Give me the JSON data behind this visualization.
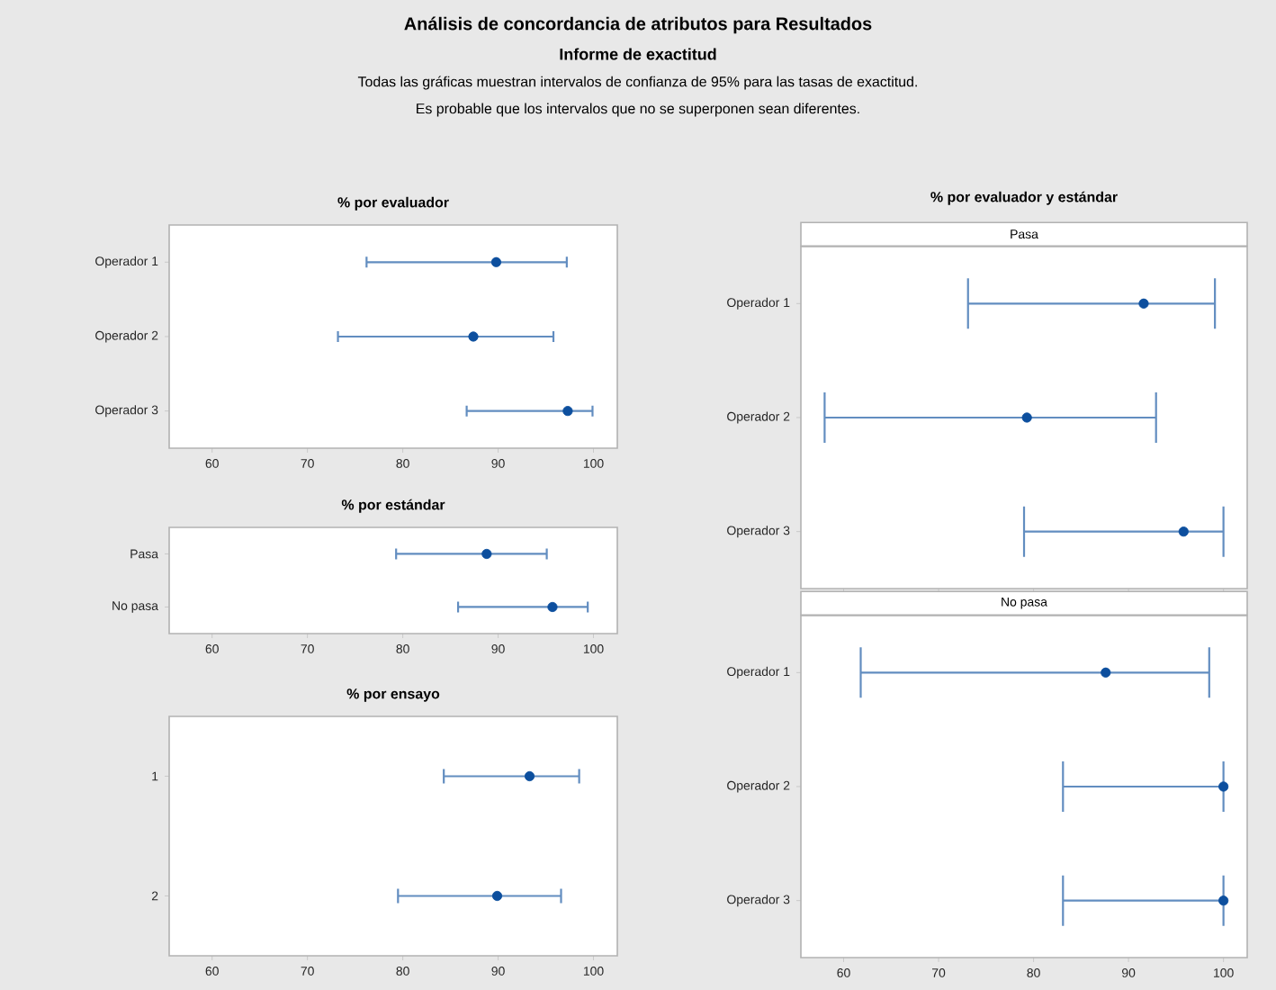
{
  "chart_data": [
    {
      "type": "other",
      "title": "Análisis de concordancia de atributos para Resultados",
      "subtitle": "Informe de exactitud",
      "annotations": [
        "Todas las gráficas muestran intervalos de confianza de 95% para las tasas de exactitud.",
        "Es probable que los intervalos que no se superponen sean diferentes."
      ]
    },
    {
      "type": "scatter",
      "orientation": "horizontal",
      "title": "% por evaluador",
      "categories": [
        "Operador 1",
        "Operador 2",
        "Operador 3"
      ],
      "values": [
        89.8,
        87.4,
        97.3
      ],
      "errors": [
        [
          76.2,
          97.2
        ],
        [
          73.2,
          95.8
        ],
        [
          86.7,
          99.9
        ]
      ],
      "color": "#0d4f9e",
      "marker": "circle",
      "xlim": [
        55.5,
        102.5
      ],
      "xticks": [
        60,
        70,
        80,
        90,
        100
      ]
    },
    {
      "type": "scatter",
      "orientation": "horizontal",
      "title": "% por estándar",
      "categories": [
        "Pasa",
        "No pasa"
      ],
      "values": [
        88.8,
        95.7
      ],
      "errors": [
        [
          79.3,
          95.1
        ],
        [
          85.8,
          99.4
        ]
      ],
      "color": "#0d4f9e",
      "marker": "circle",
      "xlim": [
        55.5,
        102.5
      ],
      "xticks": [
        60,
        70,
        80,
        90,
        100
      ]
    },
    {
      "type": "scatter",
      "orientation": "horizontal",
      "title": "% por ensayo",
      "categories": [
        "1",
        "2"
      ],
      "values": [
        93.3,
        89.9
      ],
      "errors": [
        [
          84.3,
          98.5
        ],
        [
          79.5,
          96.6
        ]
      ],
      "color": "#0d4f9e",
      "marker": "circle",
      "xlim": [
        55.5,
        102.5
      ],
      "xticks": [
        60,
        70,
        80,
        90,
        100
      ]
    },
    {
      "type": "scatter",
      "orientation": "horizontal",
      "title": "% por evaluador y estándar",
      "subtitle": "Pasa",
      "categories": [
        "Operador 1",
        "Operador 2",
        "Operador 3"
      ],
      "values": [
        91.6,
        79.3,
        95.8
      ],
      "errors": [
        [
          73.1,
          99.1
        ],
        [
          58.0,
          92.9
        ],
        [
          79.0,
          100
        ]
      ],
      "color": "#0d4f9e",
      "marker": "circle",
      "xlim": [
        55.5,
        102.5
      ],
      "xticks": [
        60,
        70,
        80,
        90,
        100
      ],
      "tick_labels": "y"
    },
    {
      "type": "scatter",
      "orientation": "horizontal",
      "subtitle": "No pasa",
      "categories": [
        "Operador 1",
        "Operador 2",
        "Operador 3"
      ],
      "values": [
        87.6,
        100,
        100
      ],
      "errors": [
        [
          61.8,
          98.5
        ],
        [
          83.1,
          100
        ],
        [
          83.1,
          100
        ]
      ],
      "color": "#0d4f9e",
      "marker": "circle",
      "xlim": [
        55.5,
        102.5
      ],
      "xticks": [
        60,
        70,
        80,
        90,
        100
      ]
    }
  ]
}
